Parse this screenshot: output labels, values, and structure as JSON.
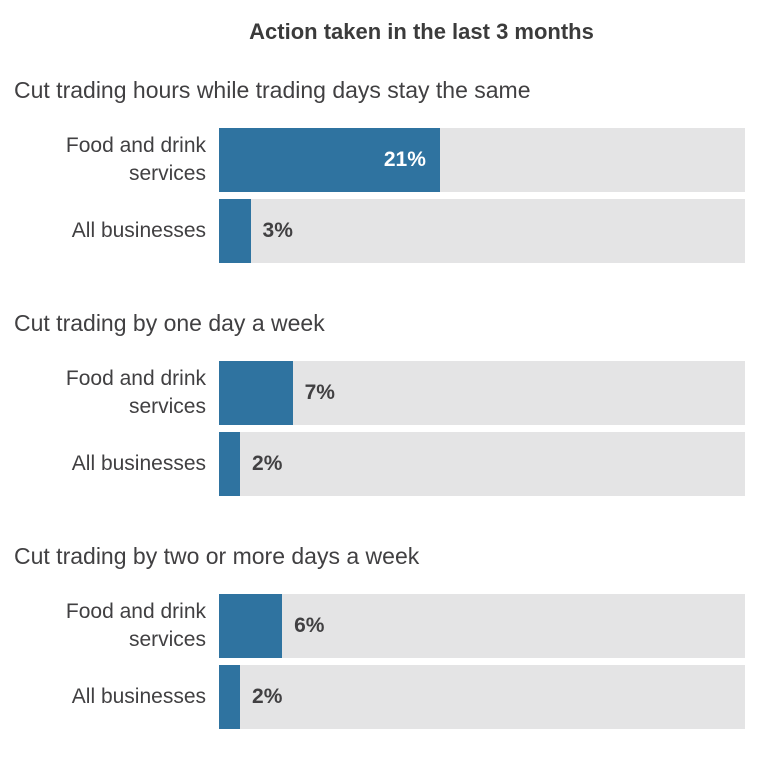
{
  "title": "Action taken in the last 3 months",
  "colors": {
    "bar_fill": "#2F73A0",
    "bar_track": "#E4E4E5",
    "heading_text": "#414042",
    "title_text": "#3B3B3B",
    "value_label_inside": "#FFFFFF",
    "value_label_outside": "#414042",
    "background": "#FFFFFF"
  },
  "chart_data": {
    "type": "bar",
    "orientation": "horizontal",
    "title": "Action taken in the last 3 months",
    "unit": "%",
    "axis_max": 50,
    "grid": false,
    "legend": false,
    "categories": [
      "Food and drink services",
      "All businesses"
    ],
    "groups": [
      {
        "heading": "Cut trading hours while trading days stay the same",
        "rows": [
          {
            "label": "Food and drink services",
            "value": 21,
            "value_label": "21%",
            "label_position": "inside"
          },
          {
            "label": "All businesses",
            "value": 3,
            "value_label": "3%",
            "label_position": "outside"
          }
        ]
      },
      {
        "heading": "Cut trading by one day a week",
        "rows": [
          {
            "label": "Food and drink services",
            "value": 7,
            "value_label": "7%",
            "label_position": "outside"
          },
          {
            "label": "All businesses",
            "value": 2,
            "value_label": "2%",
            "label_position": "outside"
          }
        ]
      },
      {
        "heading": "Cut trading by two or more days a week",
        "rows": [
          {
            "label": "Food and drink services",
            "value": 6,
            "value_label": "6%",
            "label_position": "outside"
          },
          {
            "label": "All businesses",
            "value": 2,
            "value_label": "2%",
            "label_position": "outside"
          }
        ]
      }
    ]
  }
}
